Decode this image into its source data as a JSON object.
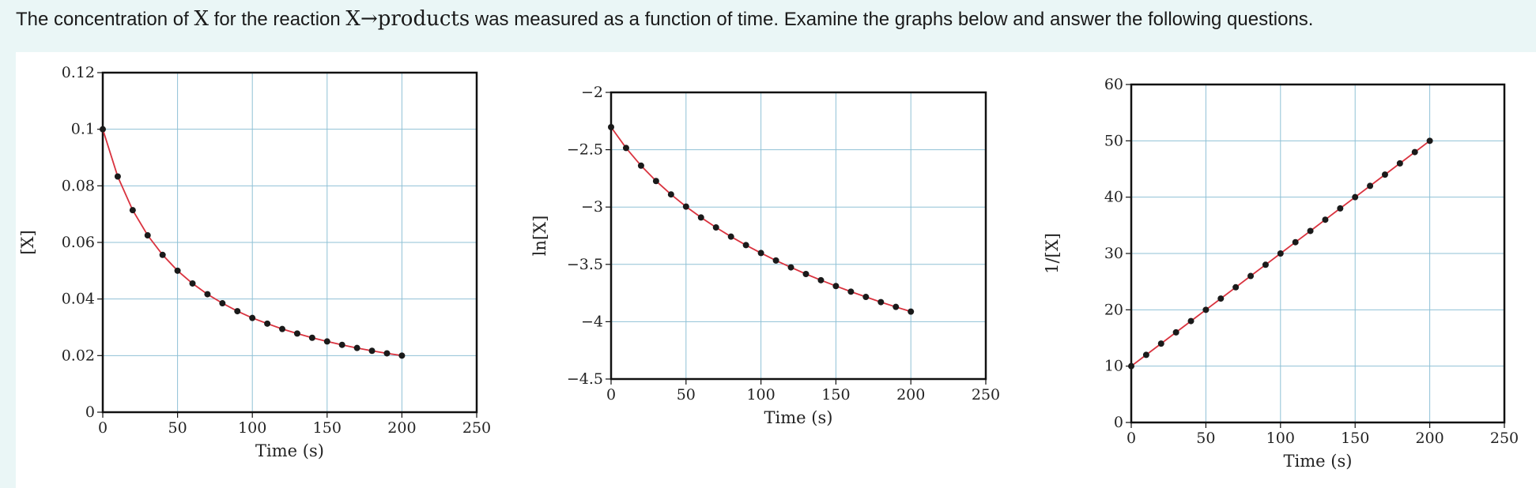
{
  "question": {
    "p1": "The concentration of ",
    "var": "X",
    "p2": " for the reaction ",
    "rxn_var": "X",
    "arrow": "→",
    "products": "products",
    "p3": " was measured as a function of time. Examine the graphs below and answer the following questions."
  },
  "colors": {
    "curve": "#d9333f",
    "point": "#1a1a1a",
    "grid": "#8fc1d6",
    "frame": "#111111"
  },
  "chart_data": [
    {
      "type": "line",
      "xlabel": "Time (s)",
      "ylabel": "[X]",
      "xlim": [
        0,
        250
      ],
      "ylim": [
        0,
        0.12
      ],
      "xticks": [
        0,
        50,
        100,
        150,
        200,
        250
      ],
      "xtick_labels": [
        "0",
        "50",
        "100",
        "150",
        "200",
        "250"
      ],
      "yticks": [
        0,
        0.02,
        0.04,
        0.06,
        0.08,
        0.1,
        0.12
      ],
      "ytick_labels": [
        "0",
        "0.02",
        "0.04",
        "0.06",
        "0.08",
        "0.1",
        "0.12"
      ],
      "grid": true,
      "x": [
        0,
        10,
        20,
        30,
        40,
        50,
        60,
        70,
        80,
        90,
        100,
        110,
        120,
        130,
        140,
        150,
        160,
        170,
        180,
        190,
        200
      ],
      "y": [
        0.1,
        0.0833,
        0.0714,
        0.0625,
        0.0556,
        0.05,
        0.0455,
        0.0417,
        0.0385,
        0.0357,
        0.0333,
        0.0313,
        0.0294,
        0.0278,
        0.0263,
        0.025,
        0.0238,
        0.0227,
        0.0217,
        0.0208,
        0.02
      ]
    },
    {
      "type": "line",
      "xlabel": "Time (s)",
      "ylabel": "ln[X]",
      "xlim": [
        0,
        250
      ],
      "ylim": [
        -4.5,
        -2
      ],
      "xticks": [
        0,
        50,
        100,
        150,
        200,
        250
      ],
      "xtick_labels": [
        "0",
        "50",
        "100",
        "150",
        "200",
        "250"
      ],
      "yticks": [
        -4.5,
        -4,
        -3.5,
        -3,
        -2.5,
        -2
      ],
      "ytick_labels": [
        "−4.5",
        "−4",
        "−3.5",
        "−3",
        "−2.5",
        "−2"
      ],
      "grid": true,
      "x": [
        0,
        10,
        20,
        30,
        40,
        50,
        60,
        70,
        80,
        90,
        100,
        110,
        120,
        130,
        140,
        150,
        160,
        170,
        180,
        190,
        200
      ],
      "y": [
        -2.303,
        -2.485,
        -2.639,
        -2.773,
        -2.89,
        -2.996,
        -3.091,
        -3.178,
        -3.258,
        -3.332,
        -3.401,
        -3.466,
        -3.526,
        -3.584,
        -3.638,
        -3.689,
        -3.738,
        -3.784,
        -3.829,
        -3.871,
        -3.912
      ]
    },
    {
      "type": "line",
      "xlabel": "Time (s)",
      "ylabel": "1/[X]",
      "xlim": [
        0,
        250
      ],
      "ylim": [
        0,
        60
      ],
      "xticks": [
        0,
        50,
        100,
        150,
        200,
        250
      ],
      "xtick_labels": [
        "0",
        "50",
        "100",
        "150",
        "200",
        "250"
      ],
      "yticks": [
        0,
        10,
        20,
        30,
        40,
        50,
        60
      ],
      "ytick_labels": [
        "0",
        "10",
        "20",
        "30",
        "40",
        "50",
        "60"
      ],
      "grid": true,
      "x": [
        0,
        10,
        20,
        30,
        40,
        50,
        60,
        70,
        80,
        90,
        100,
        110,
        120,
        130,
        140,
        150,
        160,
        170,
        180,
        190,
        200
      ],
      "y": [
        10,
        12,
        14,
        16,
        18,
        20,
        22,
        24,
        26,
        28,
        30,
        32,
        34,
        36,
        38,
        40,
        42,
        44,
        46,
        48,
        50
      ]
    }
  ]
}
